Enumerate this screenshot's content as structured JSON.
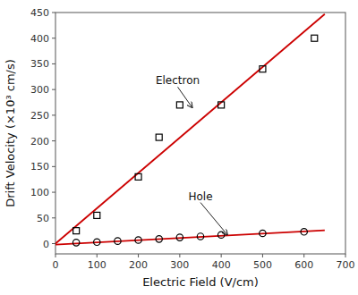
{
  "chart_data": {
    "type": "scatter",
    "xlabel": "Electric Field (V/cm)",
    "ylabel": "Drift Velocity (×10³ cm/s)",
    "xlim": [
      0,
      700
    ],
    "ylim": [
      -20,
      450
    ],
    "xticks": [
      0,
      100,
      200,
      300,
      400,
      500,
      600,
      700
    ],
    "yticks": [
      0,
      50,
      100,
      150,
      200,
      250,
      300,
      350,
      400,
      450
    ],
    "grid": false,
    "series": [
      {
        "type": "scatter",
        "marker": "square",
        "color": "black",
        "x": [
          50,
          100,
          200,
          250,
          300,
          400,
          500,
          625
        ],
        "values": [
          25,
          55,
          130,
          207,
          270,
          270,
          340,
          400
        ]
      },
      {
        "type": "scatter",
        "marker": "circle",
        "color": "black",
        "x": [
          50,
          100,
          150,
          200,
          250,
          300,
          350,
          400,
          500,
          600
        ],
        "values": [
          2,
          3,
          5,
          7,
          9,
          12,
          14,
          17,
          20,
          23
        ]
      },
      {
        "type": "line",
        "color": "#cc0000",
        "x": [
          0,
          650
        ],
        "values": [
          0,
          447
        ]
      },
      {
        "type": "line",
        "color": "#cc0000",
        "x": [
          0,
          650
        ],
        "values": [
          -2,
          26
        ]
      }
    ],
    "annotations": [
      {
        "text": "Electron",
        "x": 330,
        "y": 265,
        "text_x": 295,
        "text_y": 305
      },
      {
        "text": "Hole",
        "x": 415,
        "y": 17,
        "text_x": 350,
        "text_y": 80
      }
    ]
  }
}
